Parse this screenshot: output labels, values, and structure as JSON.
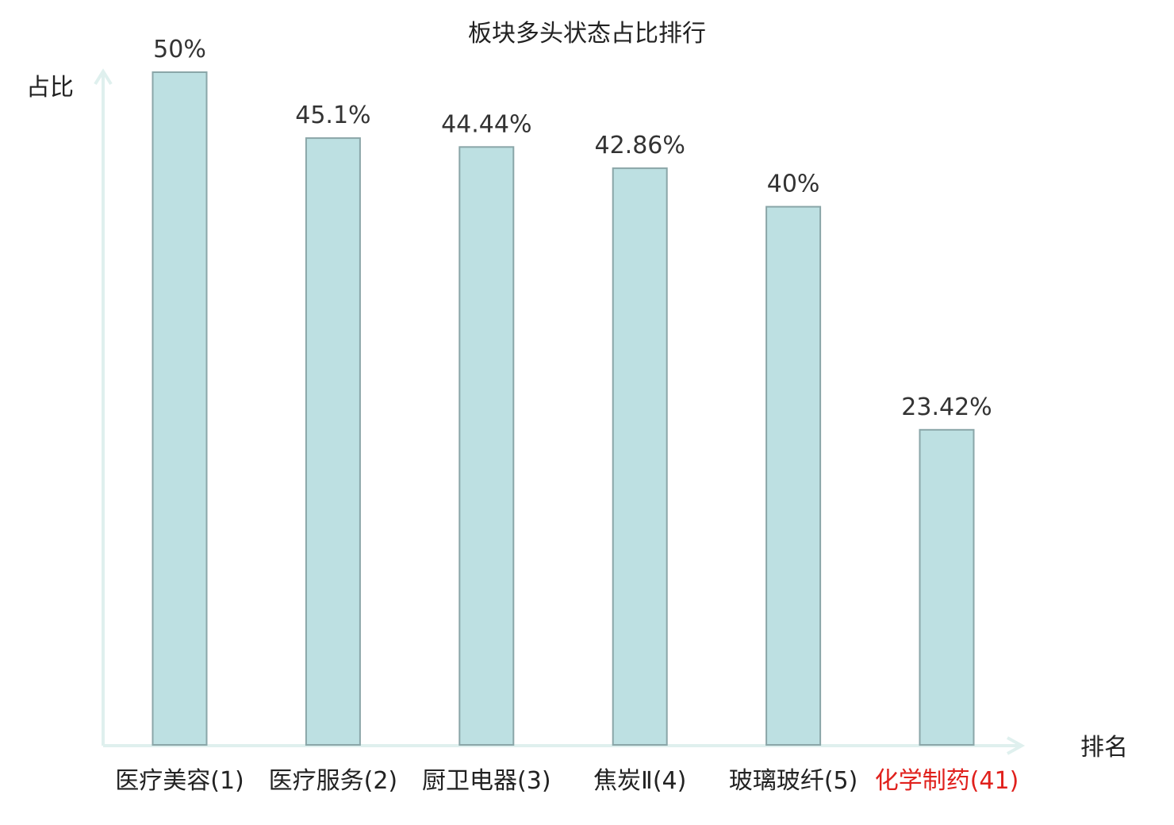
{
  "chart_data": {
    "type": "bar",
    "title": "板块多头状态占比排行",
    "xlabel": "排名",
    "ylabel": "占比",
    "categories": [
      "医疗美容(1)",
      "医疗服务(2)",
      "厨卫电器(3)",
      "焦炭Ⅱ(4)",
      "玻璃玻纤(5)",
      "化学制药(41)"
    ],
    "values": [
      50,
      45.1,
      44.44,
      42.86,
      40,
      23.42
    ],
    "value_labels": [
      "50%",
      "45.1%",
      "44.44%",
      "42.86%",
      "40%",
      "23.42%"
    ],
    "ylim": [
      0,
      50
    ],
    "highlight_category_index": 5,
    "grid": false,
    "legend": "none",
    "colors": {
      "bar_fill": "#bde0e2",
      "bar_stroke": "#8aa6a8",
      "axis": "#dff0ee",
      "highlight_text": "#e0201c",
      "text": "#222222"
    }
  }
}
